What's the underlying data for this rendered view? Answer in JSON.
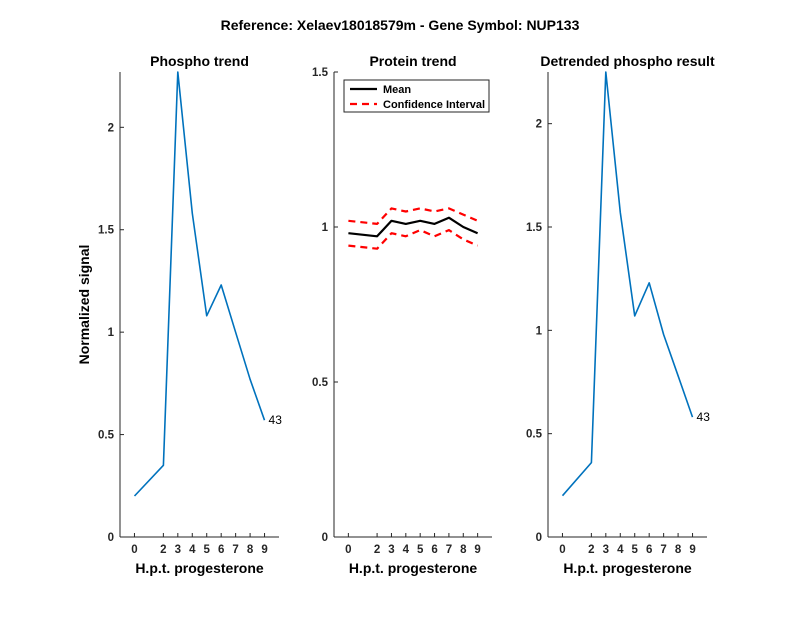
{
  "figure": {
    "suptitle": "Reference:  Xelaev18018579m - Gene Symbol:  NUP133"
  },
  "chart_data": [
    {
      "type": "line",
      "title": "Phospho trend",
      "xlabel": "H.p.t. progesterone",
      "ylabel": "Normalized signal",
      "x": [
        0,
        2,
        3,
        4,
        5,
        6,
        7,
        8,
        9
      ],
      "xticks": [
        "0",
        "2",
        "3",
        "4",
        "5",
        "6",
        "7",
        "8",
        "9"
      ],
      "xlim": [
        -1,
        10
      ],
      "ylim": [
        0,
        2.27
      ],
      "yticks": [
        "0",
        "0.5",
        "1",
        "1.5",
        "2"
      ],
      "series": [
        {
          "values": [
            0.2,
            0.35,
            2.27,
            1.58,
            1.08,
            1.23,
            1.0,
            0.77,
            0.57
          ],
          "color": "#0072BD",
          "dashed": false
        }
      ],
      "annotation": {
        "text": "43",
        "x": 9,
        "y": 0.57
      }
    },
    {
      "type": "line",
      "title": "Protein trend",
      "xlabel": "H.p.t. progesterone",
      "ylabel": "",
      "x": [
        0,
        2,
        3,
        4,
        5,
        6,
        7,
        8,
        9
      ],
      "xticks": [
        "0",
        "2",
        "3",
        "4",
        "5",
        "6",
        "7",
        "8",
        "9"
      ],
      "xlim": [
        -1,
        10
      ],
      "ylim": [
        0,
        1.5
      ],
      "yticks": [
        "0",
        "0.5",
        "1",
        "1.5"
      ],
      "legend": {
        "position": "top-left"
      },
      "series": [
        {
          "name": "Mean",
          "values": [
            0.98,
            0.97,
            1.02,
            1.01,
            1.02,
            1.01,
            1.03,
            1.0,
            0.98
          ],
          "color": "#000000",
          "dashed": false
        },
        {
          "name": "Confidence Interval",
          "values": [
            1.02,
            1.01,
            1.06,
            1.05,
            1.06,
            1.05,
            1.06,
            1.04,
            1.02
          ],
          "color": "#ff0000",
          "dashed": true
        },
        {
          "values": [
            0.94,
            0.93,
            0.98,
            0.97,
            0.99,
            0.97,
            0.99,
            0.96,
            0.94
          ],
          "color": "#ff0000",
          "dashed": true
        }
      ]
    },
    {
      "type": "line",
      "title": "Detrended phospho result",
      "xlabel": "H.p.t. progesterone",
      "ylabel": "",
      "x": [
        0,
        2,
        3,
        4,
        5,
        6,
        7,
        8,
        9
      ],
      "xticks": [
        "0",
        "2",
        "3",
        "4",
        "5",
        "6",
        "7",
        "8",
        "9"
      ],
      "xlim": [
        -1,
        10
      ],
      "ylim": [
        0,
        2.25
      ],
      "yticks": [
        "0",
        "0.5",
        "1",
        "1.5",
        "2"
      ],
      "series": [
        {
          "values": [
            0.2,
            0.36,
            2.25,
            1.57,
            1.07,
            1.23,
            0.98,
            0.78,
            0.58
          ],
          "color": "#0072BD",
          "dashed": false
        }
      ],
      "annotation": {
        "text": "43",
        "x": 9,
        "y": 0.58
      }
    }
  ]
}
